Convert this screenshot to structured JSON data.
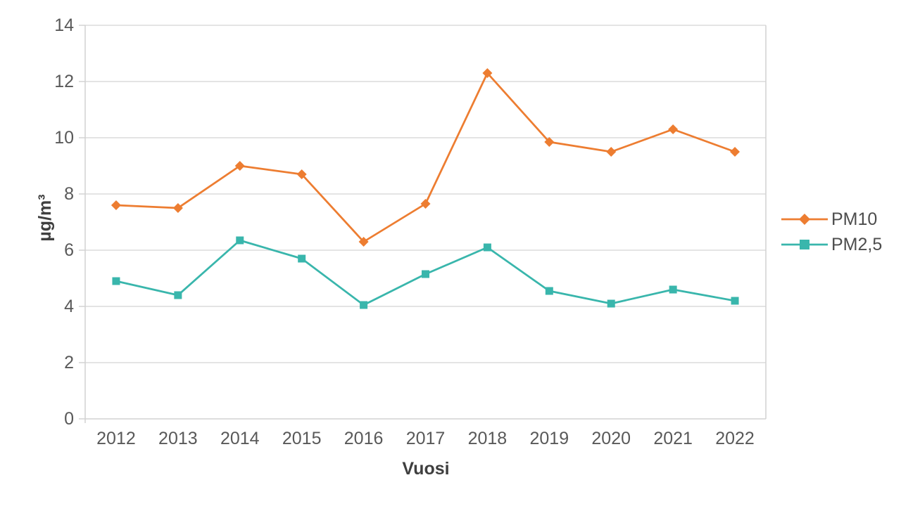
{
  "chart_data": {
    "type": "line",
    "title": "",
    "xlabel": "Vuosi",
    "ylabel": "µg/m³",
    "categories": [
      "2012",
      "2013",
      "2014",
      "2015",
      "2016",
      "2017",
      "2018",
      "2019",
      "2020",
      "2021",
      "2022"
    ],
    "series": [
      {
        "name": "PM10",
        "marker": "diamond",
        "color": "#ED7D31",
        "values": [
          7.6,
          7.5,
          9.0,
          8.7,
          6.3,
          7.65,
          12.3,
          9.85,
          9.5,
          10.3,
          9.5
        ]
      },
      {
        "name": "PM2,5",
        "marker": "square",
        "color": "#39B6AC",
        "values": [
          4.9,
          4.4,
          6.35,
          5.7,
          4.05,
          5.15,
          6.1,
          4.55,
          4.1,
          4.6,
          4.2
        ]
      }
    ],
    "ylim": [
      0,
      14
    ],
    "ytick_step": 2,
    "yticks": [
      "0",
      "2",
      "4",
      "6",
      "8",
      "10",
      "12",
      "14"
    ],
    "grid": true,
    "legend_position": "right",
    "colors": {
      "grid": "#DCDCDC",
      "axis": "#D2D2D2",
      "tick_text": "#595959",
      "title_text": "#3F3F3F",
      "background": "#FFFFFF"
    }
  }
}
